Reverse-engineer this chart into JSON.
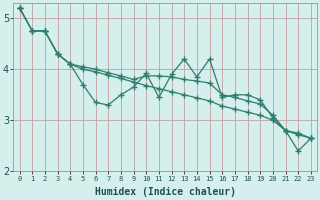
{
  "x": [
    0,
    1,
    2,
    3,
    4,
    5,
    6,
    7,
    8,
    9,
    10,
    11,
    12,
    13,
    14,
    15,
    16,
    17,
    18,
    19,
    20,
    21,
    22,
    23
  ],
  "line_jagged": [
    5.2,
    4.75,
    4.75,
    4.3,
    4.1,
    3.7,
    3.35,
    3.3,
    3.5,
    3.65,
    3.92,
    3.45,
    3.9,
    4.2,
    3.85,
    4.2,
    3.45,
    3.5,
    3.5,
    3.4,
    3.05,
    2.8,
    2.4,
    2.65
  ],
  "line_upper": [
    5.2,
    4.75,
    4.75,
    4.3,
    4.1,
    4.05,
    4.0,
    3.93,
    3.87,
    3.8,
    3.87,
    3.87,
    3.85,
    3.8,
    3.77,
    3.73,
    3.5,
    3.45,
    3.38,
    3.32,
    3.1,
    2.8,
    2.75,
    2.65
  ],
  "line_lower": [
    5.2,
    4.75,
    4.75,
    4.3,
    4.1,
    4.0,
    3.95,
    3.88,
    3.82,
    3.75,
    3.68,
    3.62,
    3.56,
    3.5,
    3.44,
    3.38,
    3.28,
    3.22,
    3.16,
    3.1,
    3.0,
    2.8,
    2.72,
    2.65
  ],
  "line_color": "#2e7d6e",
  "bg_color": "#d5efed",
  "grid_color_major": "#c8b8b8",
  "grid_color_minor": "#c8b8b8",
  "plot_bg": "#d5efed",
  "ylabel_ticks": [
    2,
    3,
    4,
    5
  ],
  "xlabel": "Humidex (Indice chaleur)",
  "xlim": [
    0,
    23
  ],
  "ylim": [
    2.0,
    5.3
  ],
  "marker": "+"
}
